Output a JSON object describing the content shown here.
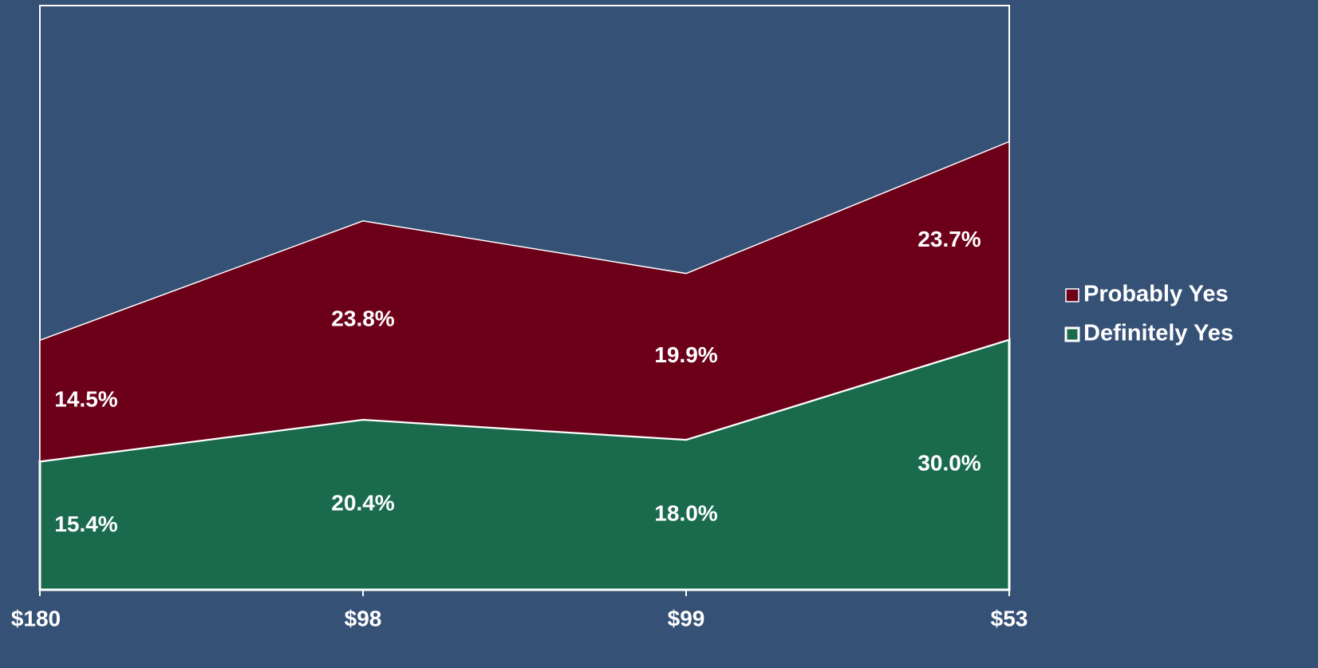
{
  "chart_data": {
    "type": "stacked_area",
    "categories": [
      "$180",
      "$98",
      "$99",
      "$53"
    ],
    "series": [
      {
        "name": "Definitely Yes",
        "color": "#1a6a4e",
        "values": [
          15.4,
          20.4,
          18.0,
          30.0
        ],
        "value_labels": [
          "15.4%",
          "20.4%",
          "18.0%",
          "30.0%"
        ]
      },
      {
        "name": "Probably Yes",
        "color": "#6d0019",
        "values": [
          14.5,
          23.8,
          19.9,
          23.7
        ],
        "value_labels": [
          "14.5%",
          "23.8%",
          "19.9%",
          "23.7%"
        ]
      }
    ],
    "ylim": [
      0,
      70
    ],
    "legend": "right"
  }
}
